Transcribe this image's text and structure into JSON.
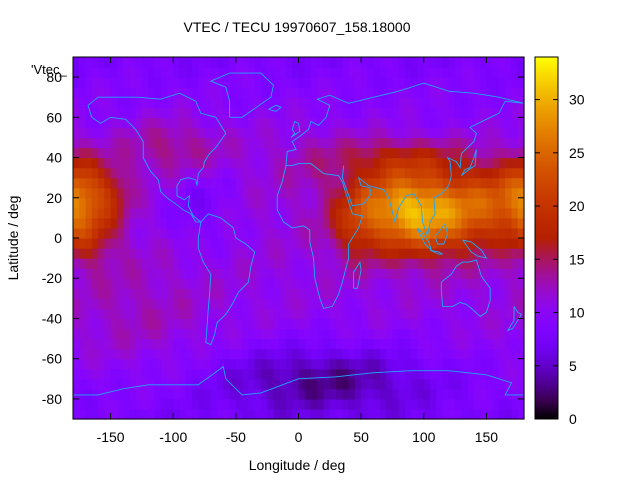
{
  "chart_data": {
    "type": "heatmap",
    "title": "VTEC / TECU 19970607_158.18000",
    "xlabel": "Longitude / deg",
    "ylabel": "Latitude / deg",
    "series_key_label": "'Vtec_",
    "xlim": [
      -180,
      180
    ],
    "ylim": [
      -90,
      90
    ],
    "x_ticks": [
      -150,
      -100,
      -50,
      0,
      50,
      100,
      150
    ],
    "y_ticks": [
      80,
      60,
      40,
      20,
      0,
      -20,
      -40,
      -60,
      -80
    ],
    "colorbar": {
      "range": [
        0,
        34
      ],
      "ticks": [
        0,
        5,
        10,
        15,
        20,
        25,
        30
      ]
    },
    "grid": {
      "lon_step": 5,
      "lat_step": 5
    },
    "features": [
      {
        "lon": 100,
        "lat": 12,
        "amp": 17,
        "sx": 38,
        "sy": 14
      },
      {
        "lon": 75,
        "lat": 20,
        "amp": 5,
        "sx": 25,
        "sy": 12
      },
      {
        "lon": 85,
        "lat": 40,
        "amp": 5,
        "sx": 35,
        "sy": 7
      },
      {
        "lon": 45,
        "lat": 5,
        "amp": 4,
        "sx": 12,
        "sy": 12
      },
      {
        "lon": 160,
        "lat": 20,
        "amp": 7,
        "sx": 25,
        "sy": 13
      },
      {
        "lon": -175,
        "lat": 20,
        "amp": 10,
        "sx": 14,
        "sy": 14
      },
      {
        "lon": -150,
        "lat": 22,
        "amp": 5,
        "sx": 12,
        "sy": 10
      },
      {
        "lon": -165,
        "lat": 0,
        "amp": 4,
        "sx": 15,
        "sy": 10
      },
      {
        "lon": -100,
        "lat": 45,
        "amp": 4,
        "sx": 30,
        "sy": 10
      },
      {
        "lon": 10,
        "lat": 40,
        "amp": 2,
        "sx": 30,
        "sy": 12
      },
      {
        "lon": 20,
        "lat": -70,
        "amp": -6,
        "sx": 60,
        "sy": 12
      },
      {
        "lon": -80,
        "lat": 15,
        "amp": -3,
        "sx": 20,
        "sy": 15
      },
      {
        "lon": -130,
        "lat": -40,
        "amp": 2,
        "sx": 40,
        "sy": 20
      }
    ],
    "base_level": 11,
    "coastlines": [
      [
        [
          -168,
          66
        ],
        [
          -160,
          70
        ],
        [
          -140,
          70
        ],
        [
          -128,
          70
        ],
        [
          -110,
          69
        ],
        [
          -95,
          72
        ],
        [
          -82,
          68
        ],
        [
          -78,
          62
        ],
        [
          -66,
          60
        ],
        [
          -58,
          52
        ],
        [
          -66,
          45
        ],
        [
          -71,
          42
        ],
        [
          -75,
          38
        ],
        [
          -76,
          35
        ],
        [
          -80,
          32
        ],
        [
          -81,
          26
        ],
        [
          -82,
          29
        ],
        [
          -88,
          30
        ],
        [
          -94,
          29
        ],
        [
          -97,
          26
        ],
        [
          -97,
          21
        ],
        [
          -91,
          19
        ],
        [
          -87,
          21
        ],
        [
          -88,
          16
        ],
        [
          -84,
          11
        ],
        [
          -80,
          9
        ],
        [
          -78,
          8
        ],
        [
          -82,
          8
        ],
        [
          -86,
          12
        ],
        [
          -92,
          14
        ],
        [
          -96,
          16
        ],
        [
          -105,
          20
        ],
        [
          -110,
          23
        ],
        [
          -112,
          29
        ],
        [
          -118,
          33
        ],
        [
          -124,
          40
        ],
        [
          -124,
          48
        ],
        [
          -130,
          54
        ],
        [
          -138,
          59
        ],
        [
          -150,
          60
        ],
        [
          -158,
          57
        ],
        [
          -165,
          60
        ],
        [
          -168,
          66
        ]
      ],
      [
        [
          -78,
          8
        ],
        [
          -72,
          12
        ],
        [
          -62,
          10
        ],
        [
          -52,
          5
        ],
        [
          -50,
          0
        ],
        [
          -42,
          -3
        ],
        [
          -35,
          -7
        ],
        [
          -38,
          -14
        ],
        [
          -40,
          -22
        ],
        [
          -48,
          -27
        ],
        [
          -53,
          -33
        ],
        [
          -58,
          -38
        ],
        [
          -65,
          -42
        ],
        [
          -67,
          -48
        ],
        [
          -70,
          -53
        ],
        [
          -74,
          -52
        ],
        [
          -73,
          -44
        ],
        [
          -72,
          -35
        ],
        [
          -71,
          -28
        ],
        [
          -70,
          -18
        ],
        [
          -76,
          -12
        ],
        [
          -80,
          -5
        ],
        [
          -80,
          0
        ],
        [
          -78,
          8
        ]
      ],
      [
        [
          -10,
          36
        ],
        [
          -5,
          36
        ],
        [
          0,
          37
        ],
        [
          10,
          37
        ],
        [
          20,
          32
        ],
        [
          32,
          31
        ],
        [
          35,
          28
        ],
        [
          40,
          18
        ],
        [
          43,
          12
        ],
        [
          51,
          11
        ],
        [
          48,
          5
        ],
        [
          40,
          -3
        ],
        [
          40,
          -10
        ],
        [
          35,
          -22
        ],
        [
          32,
          -28
        ],
        [
          27,
          -34
        ],
        [
          20,
          -35
        ],
        [
          17,
          -30
        ],
        [
          13,
          -20
        ],
        [
          12,
          -10
        ],
        [
          9,
          -2
        ],
        [
          9,
          4
        ],
        [
          4,
          6
        ],
        [
          -5,
          5
        ],
        [
          -12,
          8
        ],
        [
          -17,
          14
        ],
        [
          -17,
          21
        ],
        [
          -13,
          28
        ],
        [
          -10,
          36
        ]
      ],
      [
        [
          -10,
          36
        ],
        [
          -9,
          43
        ],
        [
          -2,
          44
        ],
        [
          -5,
          48
        ],
        [
          2,
          51
        ],
        [
          8,
          54
        ],
        [
          10,
          58
        ],
        [
          16,
          56
        ],
        [
          22,
          60
        ],
        [
          25,
          66
        ],
        [
          15,
          69
        ],
        [
          25,
          71
        ],
        [
          40,
          67
        ],
        [
          60,
          70
        ],
        [
          80,
          73
        ],
        [
          100,
          77
        ],
        [
          120,
          73
        ],
        [
          140,
          72
        ],
        [
          160,
          70
        ],
        [
          180,
          67
        ]
      ],
      [
        [
          36,
          36
        ],
        [
          35,
          30
        ],
        [
          43,
          16
        ],
        [
          52,
          17
        ],
        [
          58,
          22
        ],
        [
          57,
          25
        ],
        [
          50,
          26
        ],
        [
          48,
          30
        ],
        [
          56,
          26
        ],
        [
          62,
          25
        ],
        [
          68,
          24
        ],
        [
          72,
          20
        ],
        [
          77,
          8
        ],
        [
          80,
          15
        ],
        [
          86,
          21
        ],
        [
          92,
          22
        ],
        [
          98,
          16
        ],
        [
          99,
          8
        ],
        [
          103,
          1
        ],
        [
          105,
          8
        ],
        [
          109,
          12
        ],
        [
          108,
          20
        ],
        [
          114,
          22
        ],
        [
          120,
          26
        ],
        [
          122,
          31
        ],
        [
          121,
          38
        ],
        [
          119,
          40
        ],
        [
          126,
          38
        ],
        [
          129,
          35
        ],
        [
          130,
          42
        ],
        [
          140,
          48
        ],
        [
          142,
          52
        ],
        [
          137,
          55
        ],
        [
          150,
          59
        ],
        [
          160,
          62
        ],
        [
          165,
          68
        ],
        [
          180,
          67
        ]
      ],
      [
        [
          114,
          -22
        ],
        [
          114,
          -26
        ],
        [
          115,
          -34
        ],
        [
          123,
          -34
        ],
        [
          129,
          -32
        ],
        [
          134,
          -33
        ],
        [
          138,
          -35
        ],
        [
          145,
          -39
        ],
        [
          150,
          -37
        ],
        [
          153,
          -31
        ],
        [
          153,
          -25
        ],
        [
          146,
          -19
        ],
        [
          142,
          -11
        ],
        [
          136,
          -12
        ],
        [
          131,
          -12
        ],
        [
          126,
          -14
        ],
        [
          122,
          -18
        ],
        [
          114,
          -22
        ]
      ],
      [
        [
          -55,
          60
        ],
        [
          -45,
          60
        ],
        [
          -22,
          70
        ],
        [
          -20,
          76
        ],
        [
          -30,
          82
        ],
        [
          -55,
          82
        ],
        [
          -70,
          78
        ],
        [
          -58,
          75
        ],
        [
          -55,
          68
        ],
        [
          -55,
          60
        ]
      ],
      [
        [
          -180,
          -78
        ],
        [
          -160,
          -78
        ],
        [
          -140,
          -75
        ],
        [
          -120,
          -73
        ],
        [
          -100,
          -73
        ],
        [
          -80,
          -73
        ],
        [
          -60,
          -64
        ],
        [
          -58,
          -70
        ],
        [
          -45,
          -78
        ],
        [
          -30,
          -77
        ],
        [
          0,
          -70
        ],
        [
          30,
          -69
        ],
        [
          60,
          -67
        ],
        [
          90,
          -66
        ],
        [
          120,
          -66
        ],
        [
          150,
          -68
        ],
        [
          170,
          -72
        ],
        [
          165,
          -78
        ],
        [
          180,
          -78
        ]
      ],
      [
        [
          95,
          5
        ],
        [
          98,
          3
        ],
        [
          104,
          -2
        ],
        [
          106,
          -6
        ],
        [
          101,
          -3
        ],
        [
          96,
          3
        ],
        [
          95,
          5
        ]
      ],
      [
        [
          105,
          -6
        ],
        [
          112,
          -7
        ],
        [
          115,
          -8
        ],
        [
          112,
          -8
        ],
        [
          105,
          -6
        ]
      ],
      [
        [
          109,
          1
        ],
        [
          112,
          3
        ],
        [
          117,
          7
        ],
        [
          119,
          2
        ],
        [
          116,
          -3
        ],
        [
          111,
          -3
        ],
        [
          109,
          1
        ]
      ],
      [
        [
          131,
          -1
        ],
        [
          138,
          -2
        ],
        [
          146,
          -6
        ],
        [
          150,
          -10
        ],
        [
          143,
          -9
        ],
        [
          138,
          -7
        ],
        [
          131,
          -1
        ]
      ],
      [
        [
          130,
          31
        ],
        [
          133,
          34
        ],
        [
          137,
          35
        ],
        [
          140,
          40
        ],
        [
          142,
          44
        ],
        [
          141,
          36
        ],
        [
          136,
          34
        ],
        [
          130,
          31
        ]
      ],
      [
        [
          -6,
          50
        ],
        [
          -3,
          52
        ],
        [
          -5,
          54
        ],
        [
          -3,
          58
        ],
        [
          0,
          57
        ],
        [
          1,
          53
        ],
        [
          -6,
          50
        ]
      ],
      [
        [
          44,
          -25
        ],
        [
          47,
          -25
        ],
        [
          50,
          -16
        ],
        [
          49,
          -12
        ],
        [
          44,
          -17
        ],
        [
          44,
          -25
        ]
      ],
      [
        [
          172,
          -34
        ],
        [
          175,
          -37
        ],
        [
          178,
          -38
        ],
        [
          175,
          -41
        ],
        [
          171,
          -45
        ],
        [
          167,
          -46
        ],
        [
          172,
          -41
        ],
        [
          172,
          -34
        ]
      ],
      [
        [
          -24,
          64
        ],
        [
          -18,
          66
        ],
        [
          -14,
          65
        ],
        [
          -18,
          63
        ],
        [
          -24,
          64
        ]
      ]
    ]
  }
}
